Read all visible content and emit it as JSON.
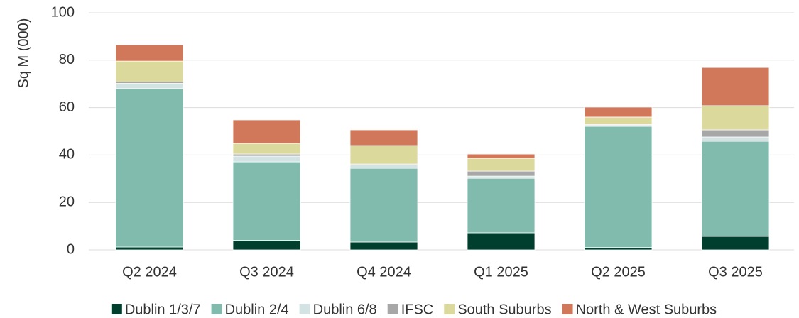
{
  "chart_data": {
    "type": "stacked_bar",
    "y_label": "Sq M (000)",
    "categories": [
      "Q2 2024",
      "Q3 2024",
      "Q4 2024",
      "Q1 2025",
      "Q2 2025",
      "Q3 2025"
    ],
    "series": [
      {
        "name": "Dublin 1/3/7",
        "color": "#003f2d",
        "values": [
          1.2,
          4.0,
          3.3,
          7.2,
          1.0,
          5.7
        ]
      },
      {
        "name": "Dublin 2/4",
        "color": "#80bbad",
        "values": [
          66.8,
          33.1,
          31.1,
          23.0,
          51.1,
          40.1
        ]
      },
      {
        "name": "Dublin 6/8",
        "color": "#d3e3e3",
        "values": [
          2.2,
          2.4,
          1.5,
          0.9,
          0.6,
          1.8
        ]
      },
      {
        "name": "IFSC",
        "color": "#a7a7a7",
        "values": [
          0.6,
          0.9,
          0.3,
          2.1,
          0.3,
          3.0
        ]
      },
      {
        "name": "South Suburbs",
        "color": "#dcd99c",
        "values": [
          8.8,
          4.5,
          7.8,
          5.4,
          3.0,
          10.2
        ]
      },
      {
        "name": "North & West Suburbs",
        "color": "#d2785a",
        "values": [
          6.9,
          9.9,
          6.6,
          1.8,
          4.2,
          16.1
        ]
      }
    ],
    "ylim": [
      0,
      100
    ],
    "yticks": [
      0,
      20,
      40,
      60,
      80,
      100
    ],
    "grid": true,
    "legend": "bottom"
  }
}
